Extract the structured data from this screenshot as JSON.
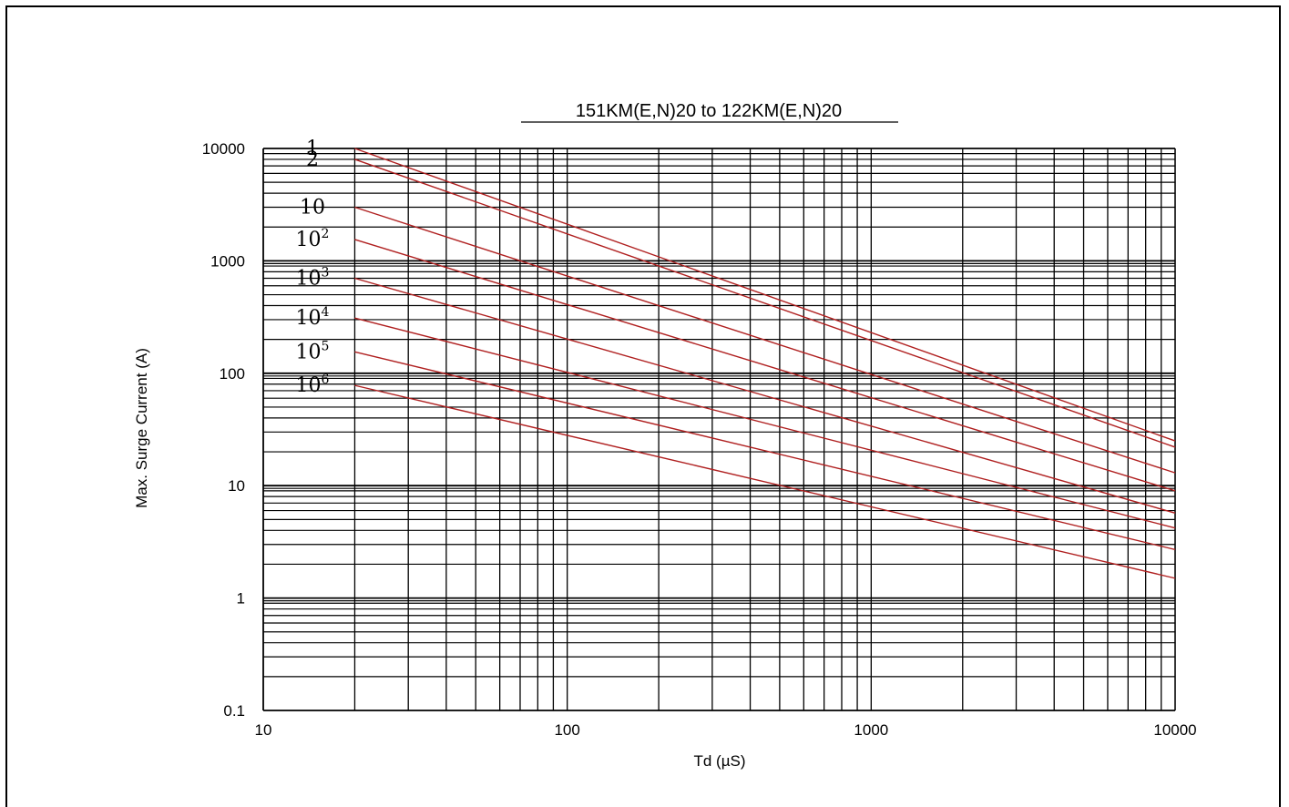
{
  "chart_data": {
    "type": "line",
    "title": "151KM(E,N)20  to 122KM(E,N)20",
    "xlabel": "Td (µS)",
    "ylabel": "Max. Surge Current (A)",
    "x_scale": "log",
    "y_scale": "log",
    "xlim": [
      10,
      10000
    ],
    "ylim": [
      0.1,
      10000
    ],
    "x_ticks": [
      "10",
      "100",
      "1000",
      "10000"
    ],
    "y_ticks": [
      "0.1",
      "1",
      "10",
      "100",
      "1000",
      "10000"
    ],
    "grid": true,
    "line_color": "#b02020",
    "series": [
      {
        "label_base": "1",
        "label_exp": "",
        "x": [
          20,
          10000
        ],
        "y": [
          10000,
          25
        ]
      },
      {
        "label_base": "2",
        "label_exp": "",
        "x": [
          20,
          10000
        ],
        "y": [
          8000,
          22
        ]
      },
      {
        "label_base": "10",
        "label_exp": "",
        "x": [
          20,
          10000
        ],
        "y": [
          3000,
          13
        ]
      },
      {
        "label_base": "10",
        "label_exp": "2",
        "x": [
          20,
          10000
        ],
        "y": [
          1550,
          9
        ]
      },
      {
        "label_base": "10",
        "label_exp": "3",
        "x": [
          20,
          10000
        ],
        "y": [
          700,
          5.7
        ]
      },
      {
        "label_base": "10",
        "label_exp": "4",
        "x": [
          20,
          10000
        ],
        "y": [
          310,
          4.2
        ]
      },
      {
        "label_base": "10",
        "label_exp": "5",
        "x": [
          20,
          10000
        ],
        "y": [
          155,
          2.7
        ]
      },
      {
        "label_base": "10",
        "label_exp": "6",
        "x": [
          20,
          10000
        ],
        "y": [
          78,
          1.5
        ]
      }
    ]
  }
}
